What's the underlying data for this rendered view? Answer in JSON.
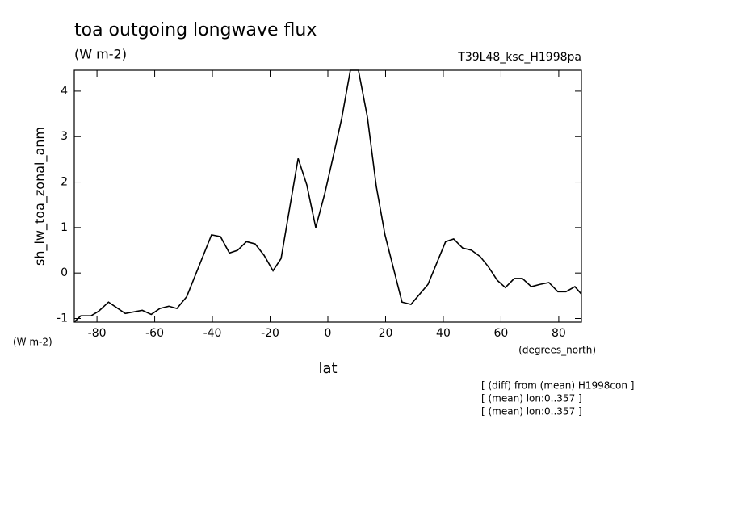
{
  "chart_data": {
    "type": "line",
    "title": "toa outgoing longwave flux",
    "subtitle": "(W m-2)",
    "dataset": "T39L48_ksc_H1998pa",
    "ylabel": "sh_lw_toa_zonal_anm",
    "yunits": "(W m-2)",
    "xunits": "(degrees_north)",
    "xlabel": "lat",
    "notes": [
      "[ (diff) from (mean) H1998con ]",
      "[ (mean) lon:0..357 ]",
      "[ (mean) lon:0..357 ]"
    ],
    "x": [
      -87.9,
      -85.6,
      -82,
      -79.4,
      -76,
      -70.2,
      -64.3,
      -61.2,
      -58.2,
      -55.1,
      -52.3,
      -48.9,
      -40.3,
      -37.2,
      -34.1,
      -31.3,
      -28.2,
      -25.2,
      -22.1,
      -19.0,
      -16.2,
      -13.1,
      -10.3,
      -7.3,
      -4.2,
      -1.1,
      1.7,
      4.8,
      7.8,
      10.6,
      13.7,
      16.8,
      19.8,
      25.7,
      28.8,
      34.7,
      40.8,
      43.6,
      46.7,
      49.8,
      52.8,
      55.6,
      58.7,
      61.5,
      64.6,
      67.4,
      70.5,
      73.5,
      76.6,
      79.7,
      82.5,
      85.6,
      87.8
    ],
    "series": [
      {
        "name": "sh_lw_toa_zonal_anm",
        "color": "#000000",
        "values": [
          -1.08,
          -0.94,
          -0.94,
          -0.84,
          -0.64,
          -0.89,
          -0.82,
          -0.91,
          -0.78,
          -0.73,
          -0.78,
          -0.52,
          0.84,
          0.8,
          0.44,
          0.5,
          0.69,
          0.64,
          0.39,
          0.05,
          0.32,
          1.48,
          2.52,
          1.94,
          1.0,
          1.74,
          2.52,
          3.4,
          4.46,
          4.46,
          3.43,
          1.9,
          0.84,
          -0.64,
          -0.69,
          -0.25,
          0.69,
          0.75,
          0.55,
          0.5,
          0.36,
          0.14,
          -0.16,
          -0.32,
          -0.12,
          -0.12,
          -0.3,
          -0.25,
          -0.21,
          -0.41,
          -0.41,
          -0.3,
          -0.46
        ]
      }
    ],
    "xlim": [
      -87.86,
      87.86
    ],
    "ylim": [
      -1.08,
      4.46
    ],
    "xticks": [
      -80,
      -60,
      -40,
      -20,
      0,
      20,
      40,
      60,
      80
    ],
    "yticks": [
      -1,
      0,
      1,
      2,
      3,
      4
    ],
    "grid": false
  }
}
